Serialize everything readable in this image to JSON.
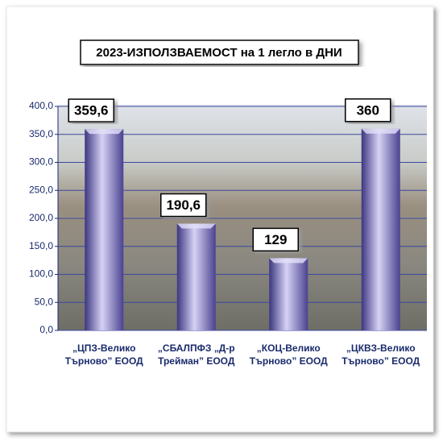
{
  "chart_data": {
    "type": "bar",
    "title": "2023-ИЗПОЛЗВАЕМОСТ на 1 легло в ДНИ",
    "categories": [
      "„ЦПЗ-Велико\nТърново” ЕООД",
      "„СБАЛПФЗ „Д-р\nТрейман” ЕООД",
      "„КОЦ-Велико\nТърново” ЕООД",
      "„ЦКВЗ-Велико\nТърново” ЕООД"
    ],
    "values": [
      359.6,
      190.6,
      129,
      360
    ],
    "value_labels": [
      "359,6",
      "190,6",
      "129",
      "360"
    ],
    "color": "#7a70b8",
    "ylim": [
      0,
      400
    ],
    "yticks": [
      {
        "value": 0,
        "label": "0,0"
      },
      {
        "value": 50,
        "label": "50,0"
      },
      {
        "value": 100,
        "label": "100,0"
      },
      {
        "value": 150,
        "label": "150,0"
      },
      {
        "value": 200,
        "label": "200,0"
      },
      {
        "value": 250,
        "label": "250,0"
      },
      {
        "value": 300,
        "label": "300,0"
      },
      {
        "value": 350,
        "label": "350,0"
      },
      {
        "value": 400,
        "label": "400,0"
      }
    ],
    "grid": true
  }
}
